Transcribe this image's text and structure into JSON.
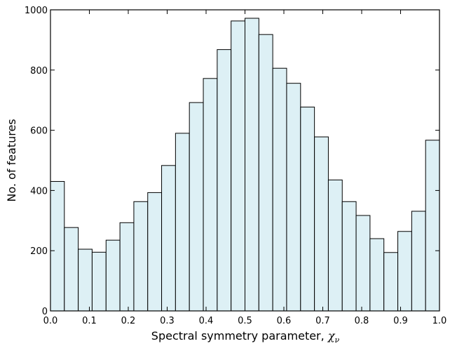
{
  "chart_data": {
    "type": "bar",
    "title": "",
    "xlabel": "Spectral symmetry parameter, ",
    "xlabel_symbol": "χ",
    "xlabel_subscript": "ν",
    "ylabel": "No. of features",
    "xlim": [
      0.0,
      1.0
    ],
    "ylim": [
      0,
      1000
    ],
    "x_ticks": [
      0.0,
      0.1,
      0.2,
      0.3,
      0.4,
      0.5,
      0.6,
      0.7,
      0.8,
      0.9,
      1.0
    ],
    "x_tick_labels": [
      "0.0",
      "0.1",
      "0.2",
      "0.3",
      "0.4",
      "0.5",
      "0.6",
      "0.7",
      "0.8",
      "0.9",
      "1.0"
    ],
    "y_ticks": [
      0,
      200,
      400,
      600,
      800,
      1000
    ],
    "y_tick_labels": [
      "0",
      "200",
      "400",
      "600",
      "800",
      "1000"
    ],
    "bin_edges": [
      0.0,
      0.0357,
      0.0714,
      0.1071,
      0.1429,
      0.1786,
      0.2143,
      0.25,
      0.2857,
      0.3214,
      0.3571,
      0.3929,
      0.4286,
      0.4643,
      0.5,
      0.5357,
      0.5714,
      0.6071,
      0.6429,
      0.6786,
      0.7143,
      0.75,
      0.7857,
      0.8214,
      0.8571,
      0.8929,
      0.9286,
      0.9643,
      1.0
    ],
    "values": [
      430,
      277,
      205,
      195,
      235,
      293,
      363,
      393,
      483,
      590,
      692,
      772,
      868,
      963,
      972,
      918,
      806,
      756,
      677,
      578,
      435,
      363,
      317,
      240,
      194,
      264,
      331,
      567
    ],
    "grid": false,
    "colors": {
      "bar_fill": "#ddf0f5",
      "bar_edge": "#000000"
    }
  }
}
